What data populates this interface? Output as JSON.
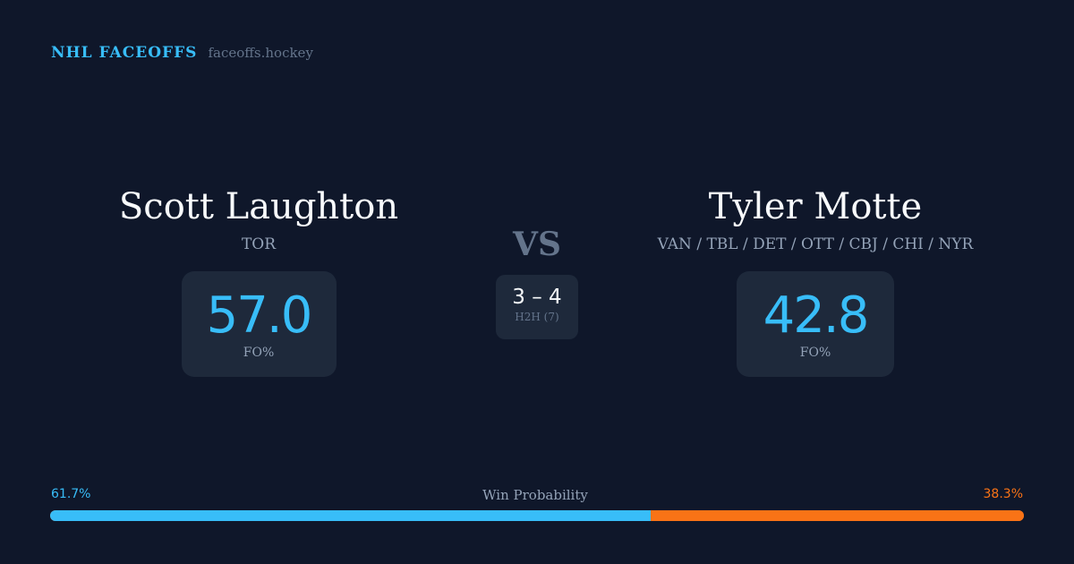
{
  "brand": {
    "name": "NHL FACEOFFS",
    "url": "faceoffs.hockey"
  },
  "player1": {
    "name": "Scott Laughton",
    "team": "TOR",
    "fo_pct": "57.0",
    "fo_label": "FO%"
  },
  "player2": {
    "name": "Tyler Motte",
    "team": "VAN / TBL / DET / OTT / CBJ / CHI / NYR",
    "fo_pct": "42.8",
    "fo_label": "FO%"
  },
  "vs": "VS",
  "h2h": {
    "score": "3 – 4",
    "label": "H2H (7)"
  },
  "win_probability": {
    "label": "Win Probability",
    "left": "61.7%",
    "right": "38.3%",
    "left_value": 61.7,
    "right_value": 38.3
  },
  "colors": {
    "background": "#0f172a",
    "card": "#1e293b",
    "accent_blue": "#38bdf8",
    "accent_orange": "#f97316"
  }
}
